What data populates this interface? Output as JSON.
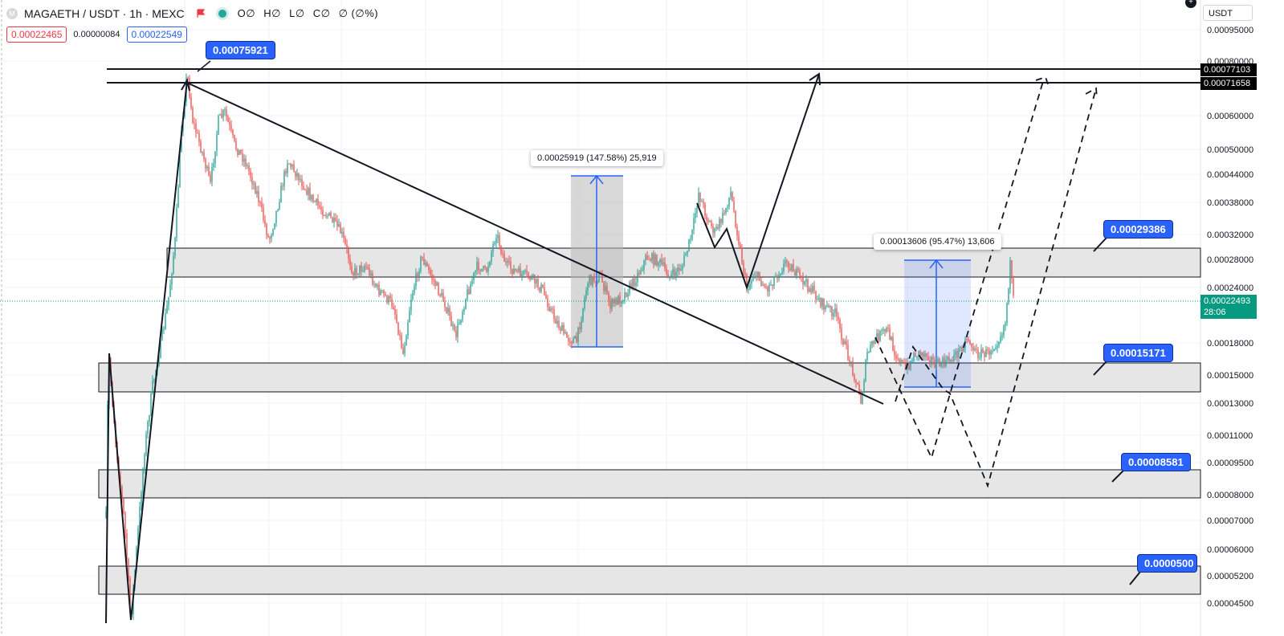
{
  "header": {
    "symbol_icon": "M",
    "title": "MAGAETH / USDT · 1h · MEXC",
    "flag_icon": "red-flag-icon",
    "status_icon": "market-open-dot-icon",
    "ohlc": [
      {
        "key": "O",
        "value": "∅"
      },
      {
        "key": "H",
        "value": "∅"
      },
      {
        "key": "L",
        "value": "∅"
      },
      {
        "key": "C",
        "value": "∅"
      },
      {
        "key": "",
        "value": "∅ (∅%)"
      }
    ]
  },
  "quotes": {
    "sell": "0.00022465",
    "spread": "0.00000084",
    "buy": "0.00022549"
  },
  "price_scale": {
    "currency": "USDT",
    "ticks": [
      "0.00095000",
      "0.00080000",
      "0.00060000",
      "0.00050000",
      "0.00044000",
      "0.00038000",
      "0.00032000",
      "0.00028000",
      "0.00024000",
      "0.00018000",
      "0.00015000",
      "0.00013000",
      "0.00011000",
      "0.00009500",
      "0.00008000",
      "0.00007000",
      "0.00006000",
      "0.00005200",
      "0.00004500"
    ],
    "tag_upper": "0.00077103",
    "tag_lower": "0.00071658",
    "current_price": "0.00022493",
    "countdown": "28:06"
  },
  "callouts": {
    "ath": "0.00075921",
    "resistance": "0.00029386",
    "support1": "0.00015171",
    "support2": "0.00008581",
    "support3": "0.0000500"
  },
  "measures": {
    "first": "0.00025919 (147.58%) 25,919",
    "second": "0.00013606 (95.47%) 13,606"
  },
  "colors": {
    "up": "#26a69a",
    "down": "#ef5350",
    "accent": "#2962ff",
    "zone_fill": "#e8e8e8"
  }
}
